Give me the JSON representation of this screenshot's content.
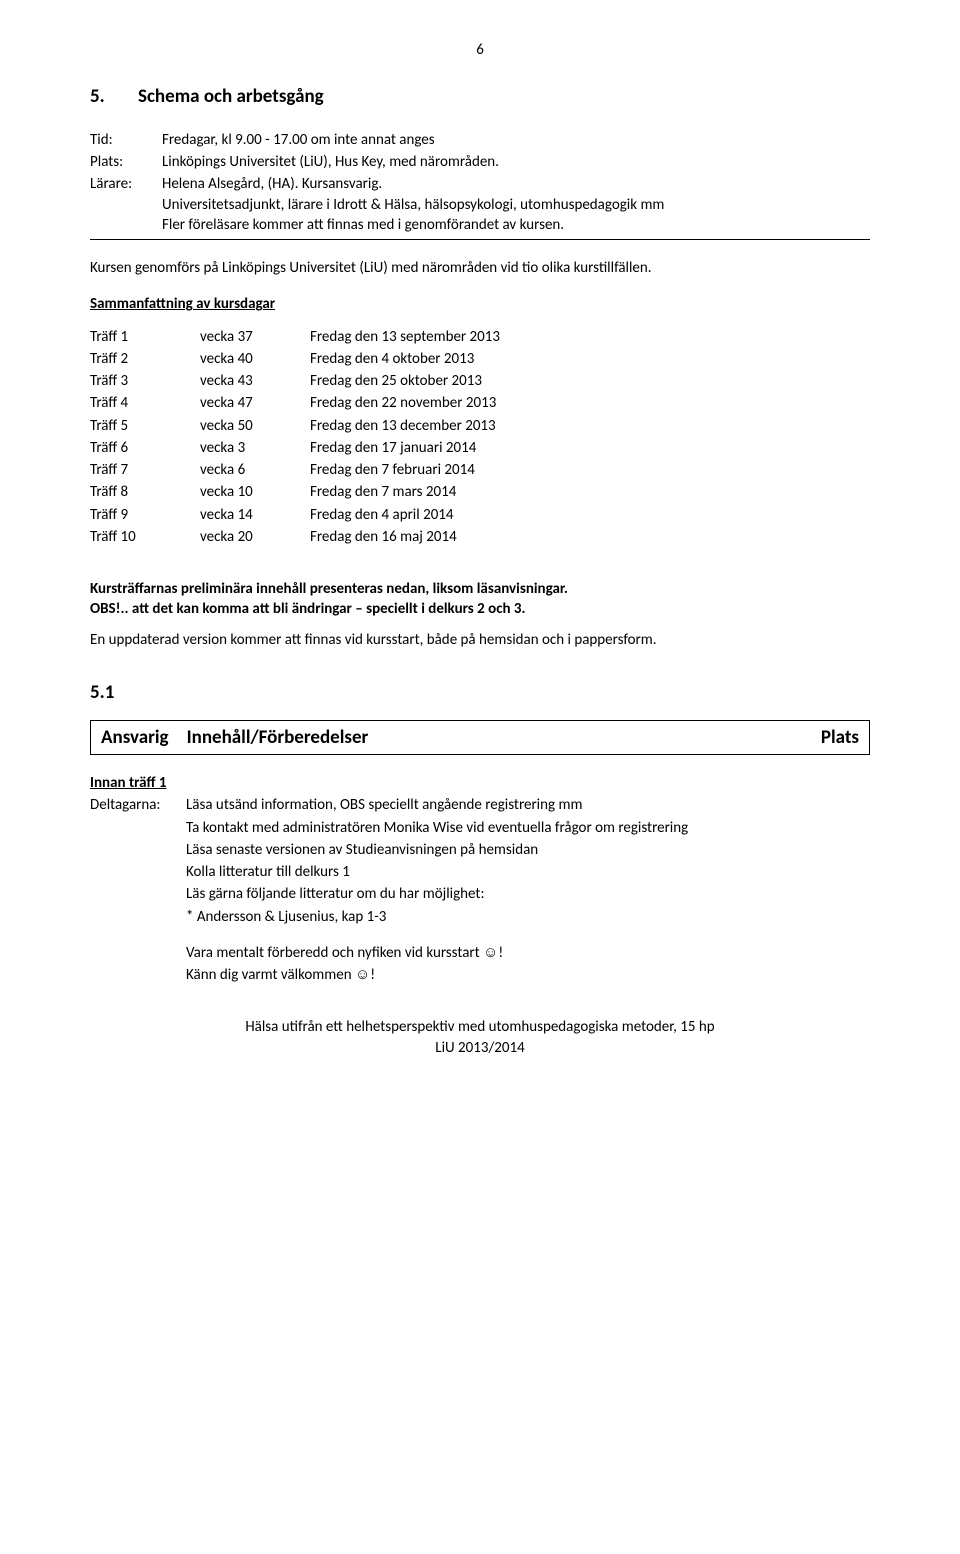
{
  "page_number": "6",
  "section": {
    "number": "5.",
    "title": "Schema och arbetsgång"
  },
  "meta": {
    "tid_label": "Tid:",
    "tid_value": "Fredagar, kl 9.00 - 17.00 om inte annat anges",
    "plats_label": "Plats:",
    "plats_value": "Linköpings Universitet (LiU), Hus Key, med närområden.",
    "larare_label": "Lärare:",
    "larare_value1": "Helena Alsegård, (HA). Kursansvarig.",
    "larare_value2": "Universitetsadjunkt, lärare i Idrott & Hälsa, hälsopsykologi, utomhuspedagogik mm",
    "larare_value3": "Fler föreläsare kommer att finnas med i genomförandet av kursen."
  },
  "intro_para": "Kursen genomförs på Linköpings Universitet (LiU) med närområden vid tio olika kurstillfällen.",
  "summary_heading": "Sammanfattning av kursdagar",
  "schedule": [
    {
      "c1": "Träff 1",
      "c2": "vecka 37",
      "c3": "Fredag den 13 september 2013"
    },
    {
      "c1": "Träff 2",
      "c2": "vecka 40",
      "c3": "Fredag den 4 oktober 2013"
    },
    {
      "c1": "Träff 3",
      "c2": "vecka 43",
      "c3": "Fredag den 25 oktober 2013"
    },
    {
      "c1": "Träff 4",
      "c2": "vecka 47",
      "c3": "Fredag den 22 november 2013"
    },
    {
      "c1": "Träff 5",
      "c2": "vecka 50",
      "c3": "Fredag den 13 december 2013"
    },
    {
      "c1": "Träff 6",
      "c2": "vecka 3",
      "c3": "Fredag den 17 januari 2014"
    },
    {
      "c1": "Träff 7",
      "c2": "vecka 6",
      "c3": "Fredag den 7 februari 2014"
    },
    {
      "c1": "Träff 8",
      "c2": "vecka 10",
      "c3": "Fredag den 7 mars 2014"
    },
    {
      "c1": "Träff 9",
      "c2": "vecka 14",
      "c3": "Fredag den 4 april 2014"
    },
    {
      "c1": "Träff 10",
      "c2": "vecka 20",
      "c3": "Fredag den 16 maj 2014"
    }
  ],
  "notes": {
    "line1": "Kursträffarnas preliminära innehåll presenteras nedan, liksom läsanvisningar.",
    "line2": "OBS!.. att det kan komma att bli ändringar – speciellt i delkurs 2 och 3.",
    "line3": "En uppdaterad version kommer att finnas vid kursstart, både på hemsidan och i pappersform."
  },
  "section51": "5.1",
  "boxed": {
    "ansvarig": "Ansvarig",
    "innehall": "Innehåll/Förberedelser",
    "plats": "Plats"
  },
  "innan_heading": "Innan träff 1",
  "deltagarna": {
    "label": "Deltagarna:",
    "lines": [
      "Läsa utsänd information, OBS speciellt angående registrering mm",
      "Ta kontakt med administratören Monika Wise vid eventuella frågor om registrering",
      "Läsa senaste versionen av Studieanvisningen på hemsidan",
      "Kolla litteratur till delkurs 1",
      "Läs gärna följande litteratur om du har möjlighet:",
      "* Andersson & Ljusenius, kap 1-3"
    ],
    "closing1": "Vara mentalt förberedd och nyfiken vid kursstart ☺!",
    "closing2": "Känn dig varmt välkommen ☺!"
  },
  "footer": {
    "line1": "Hälsa utifrån ett helhetsperspektiv med utomhuspedagogiska metoder, 15 hp",
    "line2": "LiU 2013/2014"
  }
}
